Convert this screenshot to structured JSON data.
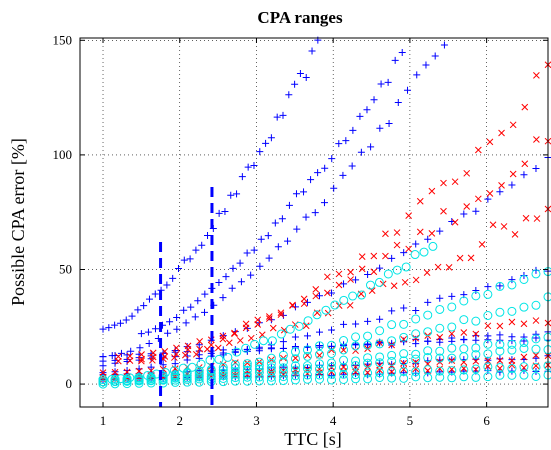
{
  "chart_data": {
    "type": "scatter",
    "title": "CPA ranges",
    "xlabel": "TTC [s]",
    "ylabel": "Possible CPA error [%]",
    "xlim": [
      0.7,
      6.8
    ],
    "ylim": [
      -10,
      151
    ],
    "xticks": [
      1,
      2,
      3,
      4,
      5,
      6
    ],
    "yticks": [
      0,
      50,
      100,
      150
    ],
    "grid": true,
    "colors": {
      "blue": "#0000ff",
      "red": "#ff0000",
      "cyan": "#00e5e5",
      "dashed": "#0000ff"
    },
    "vertical_markers": [
      {
        "x": 1.75,
        "y_range": [
          -10,
          62
        ]
      },
      {
        "x": 2.42,
        "y_range": [
          -10,
          86
        ]
      }
    ],
    "series": [
      {
        "marker": "plus",
        "color": "#0000ff",
        "x_range": [
          1.0,
          3.8
        ],
        "y_range": [
          24,
          147
        ],
        "curve": 1.5,
        "noise": 4
      },
      {
        "marker": "plus",
        "color": "#0000ff",
        "x_range": [
          1.5,
          4.9
        ],
        "y_range": [
          22,
          144
        ],
        "curve": 1.4,
        "noise": 4
      },
      {
        "marker": "plus",
        "color": "#0000ff",
        "x_range": [
          1.0,
          5.45
        ],
        "y_range": [
          12,
          150
        ],
        "curve": 1.6,
        "noise": 3
      },
      {
        "marker": "plus",
        "color": "#0000ff",
        "x_range": [
          1.0,
          6.8
        ],
        "y_range": [
          10,
          98
        ],
        "curve": 1.6,
        "noise": 2
      },
      {
        "marker": "plus",
        "color": "#0000ff",
        "x_range": [
          1.0,
          6.8
        ],
        "y_range": [
          5,
          50
        ],
        "curve": 1.3,
        "noise": 2
      },
      {
        "marker": "plus",
        "color": "#0000ff",
        "x_range": [
          1.0,
          6.8
        ],
        "y_range": [
          8,
          22
        ],
        "curve": 0.7,
        "noise": 1
      },
      {
        "marker": "plus",
        "color": "#0000ff",
        "x_range": [
          1.0,
          6.8
        ],
        "y_range": [
          12,
          20
        ],
        "curve": 0.8,
        "noise": 1
      },
      {
        "marker": "plus",
        "color": "#0000ff",
        "x_range": [
          1.0,
          6.8
        ],
        "y_range": [
          4,
          12
        ],
        "curve": 1.0,
        "noise": 1
      },
      {
        "marker": "plus",
        "color": "#0000ff",
        "x_range": [
          1.0,
          6.8
        ],
        "y_range": [
          2,
          6
        ],
        "curve": 1.0,
        "noise": 0.6
      },
      {
        "marker": "x",
        "color": "#ff0000",
        "x_range": [
          1.2,
          6.8
        ],
        "y_range": [
          10,
          135
        ],
        "curve": 1.8,
        "noise": 6
      },
      {
        "marker": "x",
        "color": "#ff0000",
        "x_range": [
          1.2,
          6.8
        ],
        "y_range": [
          12,
          105
        ],
        "curve": 1.6,
        "noise": 6
      },
      {
        "marker": "x",
        "color": "#ff0000",
        "x_range": [
          1.5,
          6.8
        ],
        "y_range": [
          10,
          78
        ],
        "curve": 1.5,
        "noise": 6
      },
      {
        "marker": "x",
        "color": "#ff0000",
        "x_range": [
          1.0,
          6.8
        ],
        "y_range": [
          5,
          28
        ],
        "curve": 1.4,
        "noise": 2
      },
      {
        "marker": "x",
        "color": "#ff0000",
        "x_range": [
          1.0,
          6.8
        ],
        "y_range": [
          3,
          12
        ],
        "curve": 1.2,
        "noise": 1
      },
      {
        "marker": "x",
        "color": "#ff0000",
        "x_range": [
          1.0,
          6.8
        ],
        "y_range": [
          2,
          8
        ],
        "curve": 1.1,
        "noise": 1
      },
      {
        "marker": "circle",
        "color": "#00e5e5",
        "x_range": [
          1.0,
          5.3
        ],
        "y_range": [
          2,
          61
        ],
        "curve": 1.8,
        "noise": 2
      },
      {
        "marker": "circle",
        "color": "#00e5e5",
        "x_range": [
          1.0,
          6.8
        ],
        "y_range": [
          2,
          50
        ],
        "curve": 1.7,
        "noise": 1.5
      },
      {
        "marker": "circle",
        "color": "#00e5e5",
        "x_range": [
          1.0,
          6.8
        ],
        "y_range": [
          2,
          37
        ],
        "curve": 1.6,
        "noise": 1.5
      },
      {
        "marker": "circle",
        "color": "#00e5e5",
        "x_range": [
          1.0,
          6.8
        ],
        "y_range": [
          1,
          20
        ],
        "curve": 1.2,
        "noise": 1
      },
      {
        "marker": "circle",
        "color": "#00e5e5",
        "x_range": [
          1.0,
          6.8
        ],
        "y_range": [
          1,
          16
        ],
        "curve": 1.3,
        "noise": 1
      },
      {
        "marker": "circle",
        "color": "#00e5e5",
        "x_range": [
          1.0,
          6.8
        ],
        "y_range": [
          1,
          8
        ],
        "curve": 1.2,
        "noise": 0.8
      },
      {
        "marker": "circle",
        "color": "#00e5e5",
        "x_range": [
          1.0,
          6.8
        ],
        "y_range": [
          0,
          4
        ],
        "curve": 1.0,
        "noise": 0.6
      }
    ],
    "points_per_series": 38
  }
}
